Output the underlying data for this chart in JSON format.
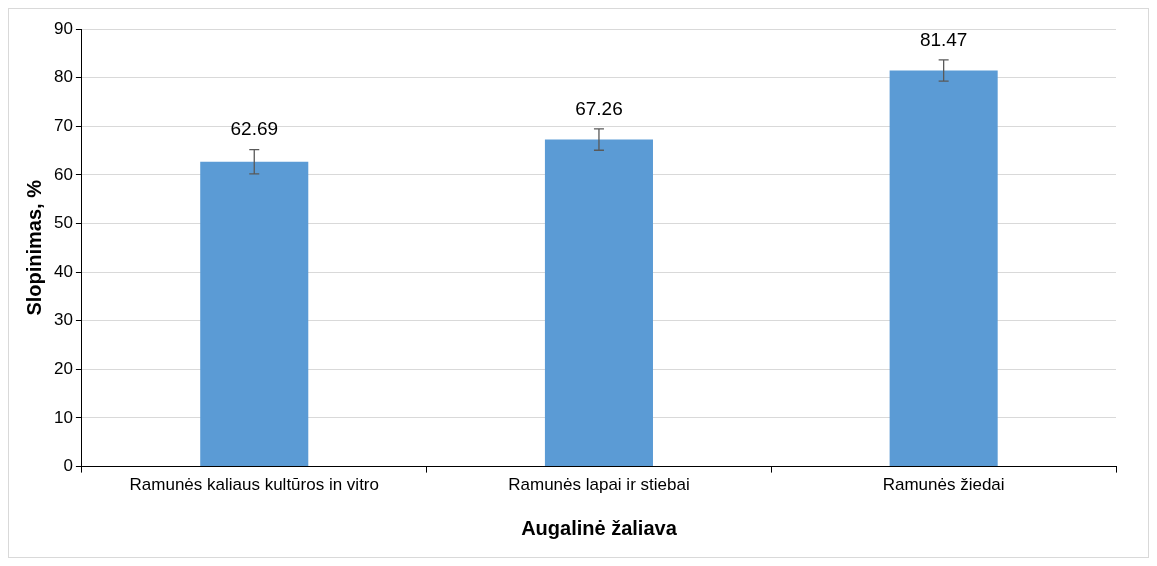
{
  "chart_data": {
    "type": "bar",
    "categories": [
      "Ramunės kaliaus kultūros in vitro",
      "Ramunės lapai ir stiebai",
      "Ramunės žiedai"
    ],
    "values": [
      62.69,
      67.26,
      81.47
    ],
    "color": "#5b9bd5",
    "errors": [
      2.5,
      2.2,
      2.2
    ],
    "xlabel": "Augalinė žaliava",
    "ylabel": "Slopinimas, %",
    "ylim": [
      0,
      90
    ],
    "yticks": [
      0,
      10,
      20,
      30,
      40,
      50,
      60,
      70,
      80,
      90
    ],
    "grid": "y",
    "legend": false,
    "data_labels": true
  }
}
